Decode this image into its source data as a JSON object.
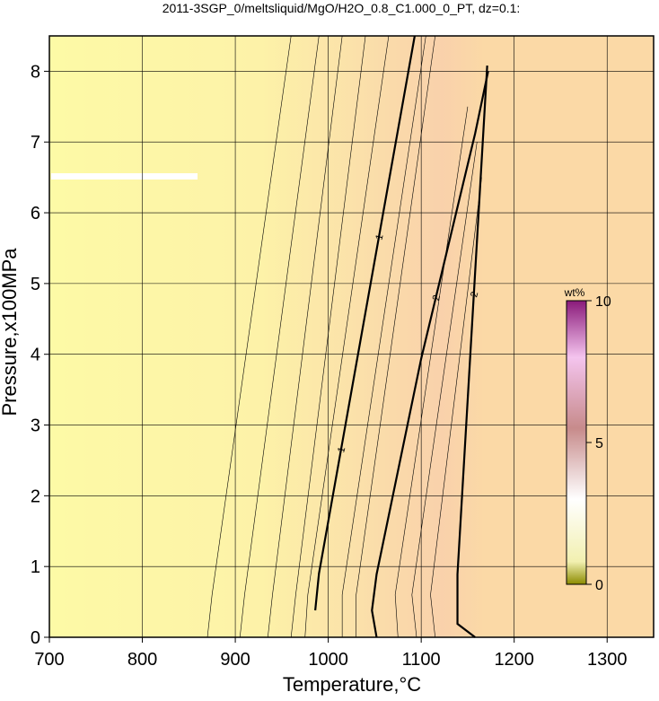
{
  "chart_data": {
    "type": "contour",
    "title": "2011-3SGP_0/meltsliquid/MgO/H2O_0.8_C1.000_0_PT, dz=0.1:",
    "x_label": "Temperature,°C",
    "y_label": "Pressure,x100MPa",
    "xlim": [
      700,
      1350
    ],
    "xticks": [
      700,
      800,
      900,
      1000,
      1100,
      1200,
      1300
    ],
    "ylim": [
      0,
      8.5
    ],
    "yticks": [
      0,
      1,
      2,
      3,
      4,
      5,
      6,
      7,
      8
    ],
    "grid": true,
    "colorbar": {
      "label": "wt%",
      "lim": [
        0,
        10
      ],
      "ticks": [
        0,
        5,
        10
      ]
    },
    "contours": [
      {
        "x": [
          870,
          875,
          960
        ],
        "y": [
          0,
          0.6,
          8.5
        ],
        "linewidth": 0.6
      },
      {
        "x": [
          905,
          910,
          990
        ],
        "y": [
          0,
          0.6,
          8.5
        ],
        "linewidth": 0.6
      },
      {
        "x": [
          935,
          940,
          1015
        ],
        "y": [
          0,
          0.6,
          8.5
        ],
        "linewidth": 0.6
      },
      {
        "x": [
          960,
          965,
          1040
        ],
        "y": [
          0,
          0.6,
          8.5
        ],
        "linewidth": 0.6
      },
      {
        "x": [
          975,
          978,
          1065
        ],
        "y": [
          0,
          0.6,
          8.5
        ],
        "linewidth": 0.6
      },
      {
        "x": [
          1015,
          1015,
          1105
        ],
        "y": [
          0,
          0.6,
          8.5
        ],
        "linewidth": 0.6
      },
      {
        "x": [
          1030,
          1030,
          1115
        ],
        "y": [
          0,
          0.6,
          8.5
        ],
        "linewidth": 0.6
      },
      {
        "x": [
          1075,
          1072,
          1150
        ],
        "y": [
          0,
          0.6,
          7.5
        ],
        "linewidth": 0.6
      },
      {
        "x": [
          1095,
          1090,
          1160
        ],
        "y": [
          0,
          0.6,
          7.0
        ],
        "linewidth": 0.6
      },
      {
        "x": [
          1115,
          1110,
          1165
        ],
        "y": [
          0,
          0.6,
          6.5
        ],
        "linewidth": 0.6
      },
      {
        "x": [
          986,
          990,
          1093
        ],
        "y": [
          0.38,
          0.9,
          8.5
        ],
        "linewidth": 2.2,
        "labels": [
          "1",
          "1"
        ]
      },
      {
        "x": [
          1052,
          1047,
          1052,
          1100,
          1158,
          1172
        ],
        "y": [
          0,
          0.38,
          0.89,
          3.94,
          7.12,
          8.0
        ],
        "linewidth": 2.2,
        "labels": [
          "2"
        ]
      },
      {
        "x": [
          1158,
          1139,
          1139,
          1171
        ],
        "y": [
          0,
          0.19,
          0.89,
          8.08
        ],
        "linewidth": 2.2,
        "labels": [
          "2"
        ]
      }
    ]
  }
}
